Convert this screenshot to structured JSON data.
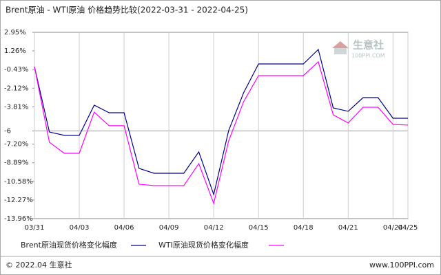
{
  "chart_data": {
    "type": "line",
    "title": "Brent原油 - WTI原油 价格趋势比较(2022-03-31 - 2022-04-25)",
    "categories": [
      "03/31",
      null,
      null,
      "04/03",
      null,
      null,
      "04/06",
      null,
      null,
      "04/09",
      null,
      null,
      "04/12",
      null,
      null,
      "04/15",
      null,
      null,
      "04/18",
      null,
      null,
      "04/21",
      null,
      null,
      "04/24",
      "04/25"
    ],
    "series": [
      {
        "name": "Brent原油现货价格变化幅度",
        "color": "#00008b",
        "values": [
          -0.17,
          -6.1,
          -6.4,
          -6.4,
          -3.66,
          -4.35,
          -4.35,
          -9.4,
          -9.84,
          -9.84,
          -9.84,
          -7.9,
          -11.77,
          -5.97,
          -2.54,
          0.08,
          0.08,
          0.08,
          0.08,
          1.39,
          -3.91,
          -4.22,
          -2.98,
          -2.98,
          -4.85,
          -4.85
        ]
      },
      {
        "name": "WTI原油现货价格变化幅度",
        "color": "#ff00ff",
        "values": [
          -0.17,
          -7.03,
          -8.03,
          -8.03,
          -4.29,
          -5.53,
          -5.53,
          -10.84,
          -10.96,
          -10.96,
          -10.96,
          -8.97,
          -12.58,
          -6.91,
          -3.35,
          -0.98,
          -0.98,
          -0.98,
          -0.98,
          0.27,
          -4.54,
          -5.28,
          -3.85,
          -3.85,
          -5.41,
          -5.47
        ]
      }
    ],
    "ylim": [
      -13.96,
      2.95
    ],
    "yticks": [
      {
        "value": 2.95,
        "label": "2.95%"
      },
      {
        "value": 1.26,
        "label": "1.26%"
      },
      {
        "value": -0.43,
        "label": "-0.43%"
      },
      {
        "value": -2.12,
        "label": "-2.12%"
      },
      {
        "value": -3.81,
        "label": "-3.81%"
      },
      -6,
      {
        "value": -7.2,
        "label": "-7.20%"
      },
      {
        "value": -8.89,
        "label": "-8.89%"
      },
      {
        "value": -10.58,
        "label": "-10.58%"
      },
      {
        "value": -12.27,
        "label": "-12.27%"
      },
      {
        "value": -13.96,
        "label": "-13.96%"
      }
    ],
    "reference_line": -6,
    "x_grid": true,
    "watermark": {
      "name": "生意社",
      "site": "100PPI.COM"
    },
    "footer": {
      "left": "© 2022.04 生意社",
      "right": "www.100PPI.com"
    }
  }
}
